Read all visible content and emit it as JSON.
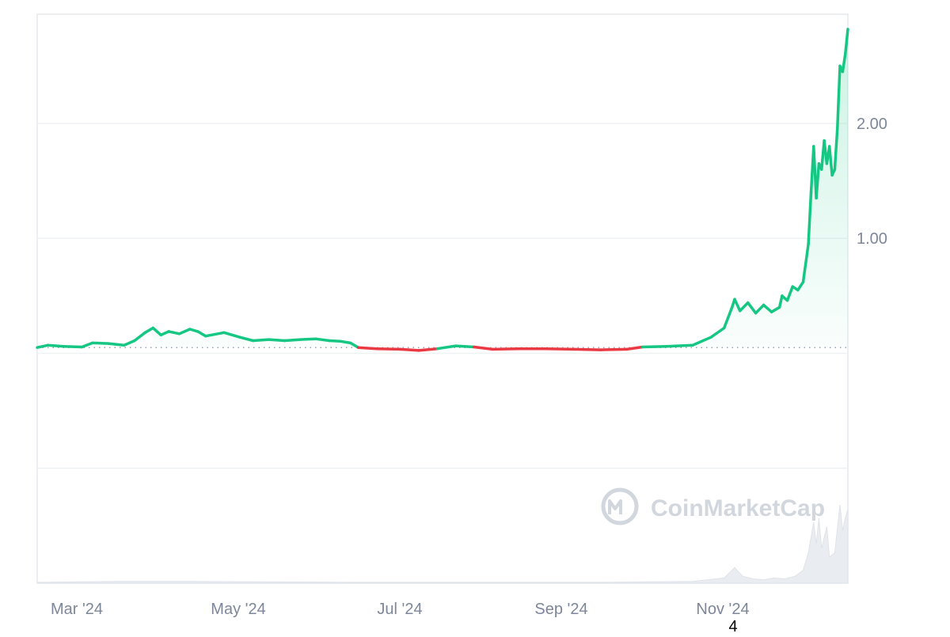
{
  "chart_data": {
    "type": "line",
    "title": "",
    "xlabel": "",
    "ylabel": "",
    "x_ticks": [
      "Mar '24",
      "May '24",
      "Jul '24",
      "Sep '24",
      "Nov '24"
    ],
    "y_ticks": [
      {
        "value": 1.0,
        "label": "1.00"
      },
      {
        "value": 2.0,
        "label": "2.00"
      }
    ],
    "x_range": [
      "2024-02-14",
      "2024-12-18"
    ],
    "ylim": [
      -2.0,
      2.95
    ],
    "baseline": 0.05,
    "colors": {
      "up": "#16c784",
      "down": "#ea3943",
      "grid": "#eff2f5",
      "axis_text": "#7d8799",
      "baseline": "#9aa2ae",
      "volume": "#e9ecf0",
      "watermark": "#d2d7de"
    },
    "series": [
      {
        "points": [
          [
            "2024-02-14",
            0.05
          ],
          [
            "2024-02-18",
            0.07
          ],
          [
            "2024-02-24",
            0.06
          ],
          [
            "2024-03-02",
            0.055
          ],
          [
            "2024-03-06",
            0.09
          ],
          [
            "2024-03-12",
            0.085
          ],
          [
            "2024-03-18",
            0.07
          ],
          [
            "2024-03-22",
            0.11
          ],
          [
            "2024-03-26",
            0.18
          ],
          [
            "2024-03-29",
            0.22
          ],
          [
            "2024-04-01",
            0.16
          ],
          [
            "2024-04-04",
            0.19
          ],
          [
            "2024-04-08",
            0.17
          ],
          [
            "2024-04-12",
            0.21
          ],
          [
            "2024-04-15",
            0.19
          ],
          [
            "2024-04-18",
            0.15
          ],
          [
            "2024-04-25",
            0.18
          ],
          [
            "2024-05-01",
            0.14
          ],
          [
            "2024-05-06",
            0.11
          ],
          [
            "2024-05-12",
            0.12
          ],
          [
            "2024-05-18",
            0.11
          ],
          [
            "2024-05-24",
            0.12
          ],
          [
            "2024-05-30",
            0.125
          ],
          [
            "2024-06-04",
            0.11
          ],
          [
            "2024-06-08",
            0.105
          ],
          [
            "2024-06-12",
            0.09
          ],
          [
            "2024-06-15",
            0.05
          ],
          [
            "2024-06-22",
            0.04
          ],
          [
            "2024-07-01",
            0.035
          ],
          [
            "2024-07-08",
            0.025
          ],
          [
            "2024-07-15",
            0.04
          ],
          [
            "2024-07-22",
            0.065
          ],
          [
            "2024-07-29",
            0.055
          ],
          [
            "2024-08-05",
            0.035
          ],
          [
            "2024-08-15",
            0.04
          ],
          [
            "2024-08-25",
            0.04
          ],
          [
            "2024-09-05",
            0.035
          ],
          [
            "2024-09-15",
            0.03
          ],
          [
            "2024-09-25",
            0.035
          ],
          [
            "2024-10-01",
            0.055
          ],
          [
            "2024-10-10",
            0.06
          ],
          [
            "2024-10-20",
            0.07
          ],
          [
            "2024-10-27",
            0.14
          ],
          [
            "2024-11-01",
            0.22
          ],
          [
            "2024-11-04",
            0.4
          ],
          [
            "2024-11-05",
            0.47
          ],
          [
            "2024-11-07",
            0.37
          ],
          [
            "2024-11-10",
            0.44
          ],
          [
            "2024-11-13",
            0.35
          ],
          [
            "2024-11-16",
            0.42
          ],
          [
            "2024-11-19",
            0.36
          ],
          [
            "2024-11-22",
            0.4
          ],
          [
            "2024-11-23",
            0.5
          ],
          [
            "2024-11-25",
            0.46
          ],
          [
            "2024-11-27",
            0.58
          ],
          [
            "2024-11-29",
            0.55
          ],
          [
            "2024-12-01",
            0.62
          ],
          [
            "2024-12-03",
            0.95
          ],
          [
            "2024-12-04",
            1.4
          ],
          [
            "2024-12-05",
            1.8
          ],
          [
            "2024-12-06",
            1.35
          ],
          [
            "2024-12-07",
            1.65
          ],
          [
            "2024-12-08",
            1.6
          ],
          [
            "2024-12-09",
            1.85
          ],
          [
            "2024-12-10",
            1.65
          ],
          [
            "2024-12-11",
            1.8
          ],
          [
            "2024-12-12",
            1.55
          ],
          [
            "2024-12-13",
            1.6
          ],
          [
            "2024-12-14",
            1.95
          ],
          [
            "2024-12-15",
            2.5
          ],
          [
            "2024-12-16",
            2.45
          ],
          [
            "2024-12-17",
            2.6
          ],
          [
            "2024-12-18",
            2.82
          ]
        ]
      }
    ],
    "volume": {
      "points": [
        [
          "2024-02-14",
          0.01
        ],
        [
          "2024-03-15",
          0.02
        ],
        [
          "2024-04-15",
          0.02
        ],
        [
          "2024-05-15",
          0.015
        ],
        [
          "2024-06-15",
          0.01
        ],
        [
          "2024-07-15",
          0.01
        ],
        [
          "2024-08-15",
          0.01
        ],
        [
          "2024-09-15",
          0.01
        ],
        [
          "2024-10-20",
          0.02
        ],
        [
          "2024-11-01",
          0.06
        ],
        [
          "2024-11-05",
          0.18
        ],
        [
          "2024-11-08",
          0.08
        ],
        [
          "2024-11-12",
          0.05
        ],
        [
          "2024-11-16",
          0.04
        ],
        [
          "2024-11-20",
          0.06
        ],
        [
          "2024-11-24",
          0.05
        ],
        [
          "2024-11-28",
          0.08
        ],
        [
          "2024-12-01",
          0.15
        ],
        [
          "2024-12-03",
          0.35
        ],
        [
          "2024-12-05",
          0.7
        ],
        [
          "2024-12-06",
          0.45
        ],
        [
          "2024-12-07",
          0.75
        ],
        [
          "2024-12-08",
          0.4
        ],
        [
          "2024-12-10",
          0.65
        ],
        [
          "2024-12-11",
          0.3
        ],
        [
          "2024-12-13",
          0.35
        ],
        [
          "2024-12-15",
          0.9
        ],
        [
          "2024-12-16",
          0.6
        ],
        [
          "2024-12-17",
          0.75
        ],
        [
          "2024-12-18",
          0.85
        ]
      ]
    },
    "watermark": "CoinMarketCap",
    "footnote": "4"
  }
}
